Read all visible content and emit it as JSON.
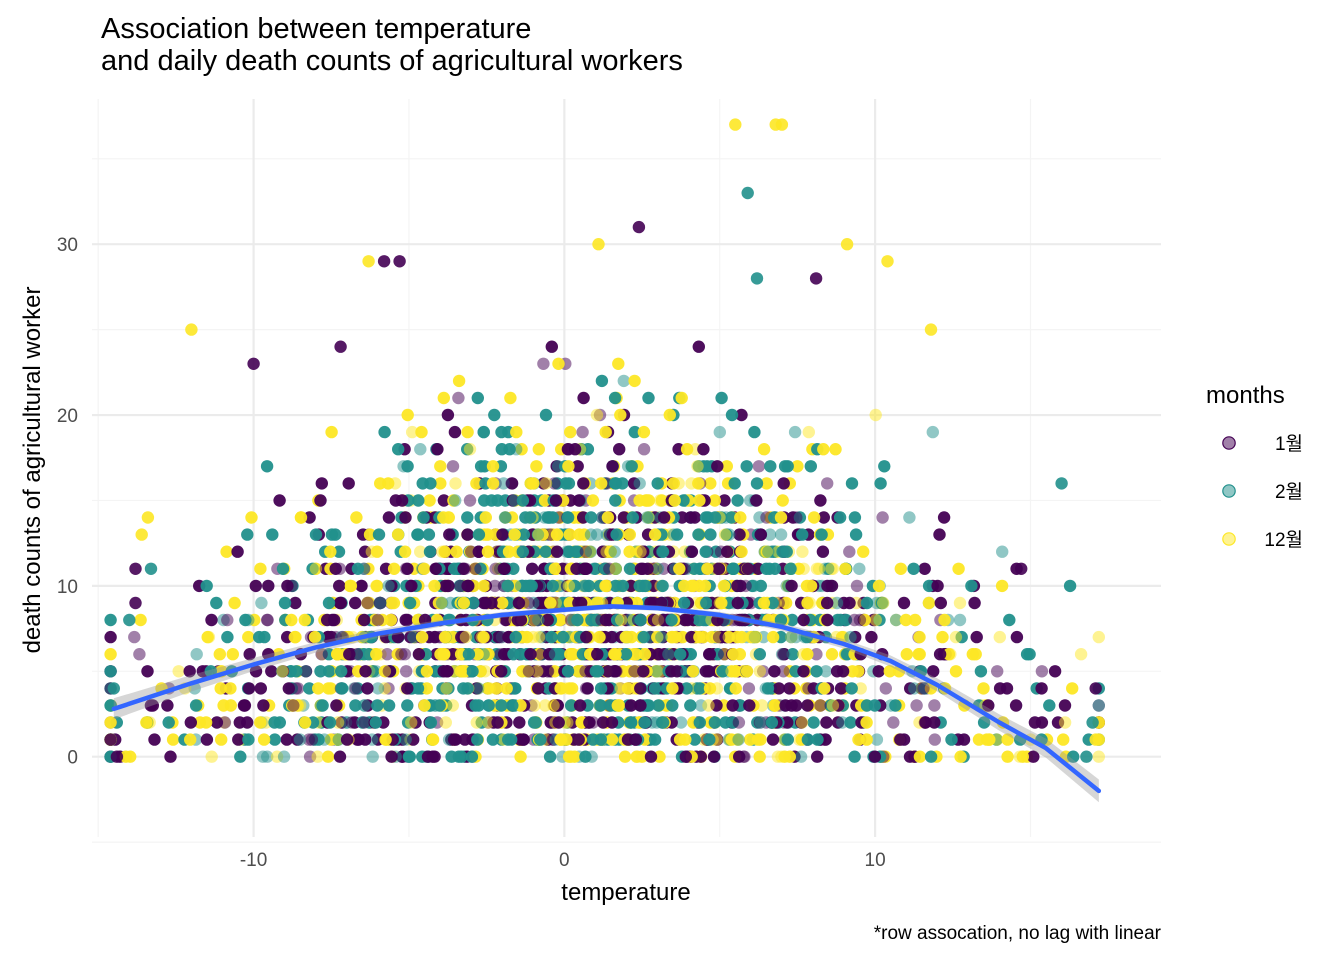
{
  "chart_data": {
    "type": "scatter",
    "title_lines": [
      "Association between temperature",
      "and daily death counts of agricultural workers"
    ],
    "xlabel": "temperature",
    "ylabel": "death counts of agricultural worker",
    "caption": "*row assocation, no lag with linear",
    "xlim": [
      -15.2,
      19.2
    ],
    "ylim": [
      -4.7,
      38.5
    ],
    "x_ticks": [
      -10,
      0,
      10
    ],
    "y_ticks": [
      0,
      10,
      20,
      30
    ],
    "grid": true,
    "legend": {
      "title": "months",
      "position": "right",
      "entries": [
        {
          "label": "1월",
          "color": "#440154"
        },
        {
          "label": "2월",
          "color": "#21908C"
        },
        {
          "label": "12월",
          "color": "#FDE725"
        }
      ]
    },
    "smooth_line": {
      "color": "#3366FF",
      "x": [
        -14.5,
        -12,
        -10,
        -8,
        -6,
        -4,
        -2,
        0,
        1.5,
        3,
        5,
        7,
        9,
        10.5,
        12,
        14,
        15.5,
        17.2
      ],
      "y": [
        2.8,
        4.3,
        5.4,
        6.4,
        7.2,
        7.8,
        8.3,
        8.6,
        8.8,
        8.7,
        8.3,
        7.6,
        6.6,
        5.6,
        4.2,
        2.0,
        0.5,
        -2.0
      ]
    },
    "highlight_points": [
      {
        "x": 5.5,
        "y": 37,
        "month": "12월"
      },
      {
        "x": 6.8,
        "y": 37,
        "month": "12월"
      },
      {
        "x": 7.0,
        "y": 37,
        "month": "12월"
      },
      {
        "x": 5.9,
        "y": 33,
        "month": "2월"
      },
      {
        "x": 2.4,
        "y": 31,
        "month": "1월"
      },
      {
        "x": 1.1,
        "y": 30,
        "month": "12월"
      },
      {
        "x": 9.1,
        "y": 30,
        "month": "12월"
      },
      {
        "x": 10.4,
        "y": 29,
        "month": "12월"
      },
      {
        "x": -5.3,
        "y": 29,
        "month": "1월"
      },
      {
        "x": -6.3,
        "y": 29,
        "month": "12월"
      },
      {
        "x": -5.8,
        "y": 29,
        "month": "1월"
      },
      {
        "x": 8.1,
        "y": 28,
        "month": "1월"
      },
      {
        "x": 6.2,
        "y": 28,
        "month": "2월"
      },
      {
        "x": -12.0,
        "y": 25,
        "month": "12월"
      },
      {
        "x": 11.8,
        "y": 25,
        "month": "12월"
      },
      {
        "x": -10.0,
        "y": 23,
        "month": "1월"
      },
      {
        "x": -7.2,
        "y": 24,
        "month": "1월"
      },
      {
        "x": 16.0,
        "y": 16,
        "month": "2월"
      },
      {
        "x": 14.7,
        "y": 11,
        "month": "1월"
      },
      {
        "x": 17.1,
        "y": 4,
        "month": "1월"
      },
      {
        "x": 17.1,
        "y": 1,
        "month": "12월"
      },
      {
        "x": 17.0,
        "y": 2,
        "month": "2월"
      },
      {
        "x": 16.8,
        "y": 0,
        "month": "2월"
      },
      {
        "x": -14.6,
        "y": 1,
        "month": "1월"
      },
      {
        "x": -14.4,
        "y": 0,
        "month": "1월"
      },
      {
        "x": -14.5,
        "y": 4,
        "month": "2월"
      },
      {
        "x": -13.3,
        "y": 11,
        "month": "2월"
      },
      {
        "x": -13.8,
        "y": 11,
        "month": "1월"
      },
      {
        "x": -14.0,
        "y": 8,
        "month": "2월"
      },
      {
        "x": -13.8,
        "y": 9,
        "month": "1월"
      },
      {
        "x": -13.4,
        "y": 14,
        "month": "12월"
      },
      {
        "x": -13.6,
        "y": 13,
        "month": "12월"
      }
    ],
    "note": "Thousands of overlapping points per month; dense band x in [-14.6, 17.2], y in [0, 25] with integer counts. Representative cloud rendered from summary density."
  }
}
